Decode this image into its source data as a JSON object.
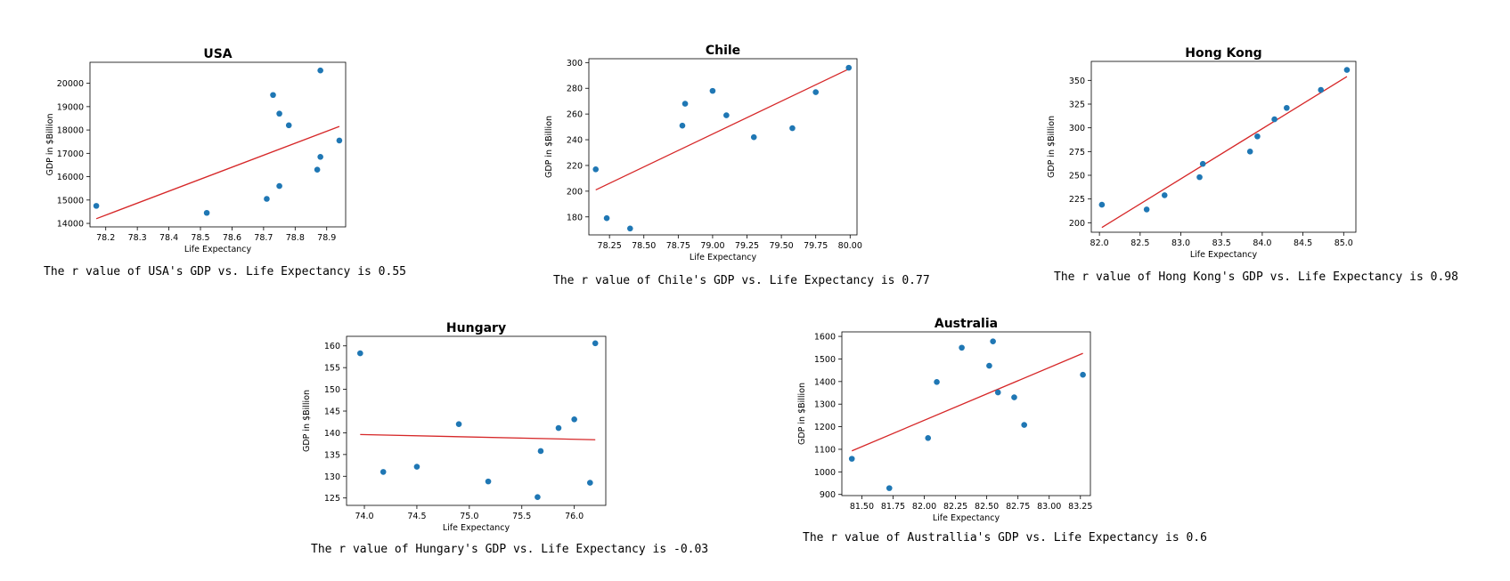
{
  "chart_data": [
    {
      "type": "scatter",
      "title": "USA",
      "xlabel": "Life Expectancy",
      "ylabel": "GDP in $Billion",
      "xlim": [
        78.15,
        78.96
      ],
      "ylim": [
        13850,
        20900
      ],
      "xticks": [
        "78.2",
        "78.3",
        "78.4",
        "78.5",
        "78.6",
        "78.7",
        "78.8",
        "78.9"
      ],
      "xtick_values": [
        78.2,
        78.3,
        78.4,
        78.5,
        78.6,
        78.7,
        78.8,
        78.9
      ],
      "yticks": [
        "14000",
        "15000",
        "16000",
        "17000",
        "18000",
        "19000",
        "20000"
      ],
      "ytick_values": [
        14000,
        15000,
        16000,
        17000,
        18000,
        19000,
        20000
      ],
      "x": [
        78.17,
        78.52,
        78.71,
        78.73,
        78.75,
        78.75,
        78.78,
        78.87,
        78.88,
        78.88,
        78.94
      ],
      "y": [
        14750,
        14450,
        15050,
        19500,
        18700,
        15600,
        18200,
        16300,
        16850,
        20550,
        17550
      ],
      "fit": [
        [
          78.17,
          14200
        ],
        [
          78.94,
          18150
        ]
      ],
      "caption": "The r value of USA's GDP vs. Life Expectancy is 0.55"
    },
    {
      "type": "scatter",
      "title": "Chile",
      "xlabel": "Life Expectancy",
      "ylabel": "GDP in $Billion",
      "xlim": [
        78.1,
        80.05
      ],
      "ylim": [
        166,
        303
      ],
      "xticks": [
        "78.25",
        "78.50",
        "78.75",
        "79.00",
        "79.25",
        "79.50",
        "79.75",
        "80.00"
      ],
      "xtick_values": [
        78.25,
        78.5,
        78.75,
        79.0,
        79.25,
        79.5,
        79.75,
        80.0
      ],
      "yticks": [
        "180",
        "200",
        "220",
        "240",
        "260",
        "280",
        "300"
      ],
      "ytick_values": [
        180,
        200,
        220,
        240,
        260,
        280,
        300
      ],
      "x": [
        78.15,
        78.23,
        78.4,
        78.78,
        78.8,
        79.0,
        79.1,
        79.3,
        79.58,
        79.75,
        79.99
      ],
      "y": [
        217,
        179,
        171,
        251,
        268,
        278,
        259,
        242,
        249,
        277,
        296
      ],
      "fit": [
        [
          78.15,
          201
        ],
        [
          79.99,
          295
        ]
      ],
      "caption": "The r value of Chile's GDP vs. Life Expectancy is 0.77"
    },
    {
      "type": "scatter",
      "title": "Hong Kong",
      "xlabel": "Life Expectancy",
      "ylabel": "GDP in $Billion",
      "xlim": [
        81.9,
        85.15
      ],
      "ylim": [
        190,
        370
      ],
      "xticks": [
        "82.0",
        "82.5",
        "83.0",
        "83.5",
        "84.0",
        "84.5",
        "85.0"
      ],
      "xtick_values": [
        82.0,
        82.5,
        83.0,
        83.5,
        84.0,
        84.5,
        85.0
      ],
      "yticks": [
        "200",
        "225",
        "250",
        "275",
        "300",
        "325",
        "350"
      ],
      "ytick_values": [
        200,
        225,
        250,
        275,
        300,
        325,
        350
      ],
      "x": [
        82.03,
        82.58,
        82.8,
        83.23,
        83.27,
        83.85,
        83.94,
        84.15,
        84.3,
        84.72,
        85.04
      ],
      "y": [
        219,
        214,
        229,
        248,
        262,
        275,
        291,
        309,
        321,
        340,
        361
      ],
      "fit": [
        [
          82.03,
          195
        ],
        [
          85.04,
          354
        ]
      ],
      "caption": "The r value of Hong Kong's GDP vs. Life Expectancy is 0.98"
    },
    {
      "type": "scatter",
      "title": "Hungary",
      "xlabel": "Life Expectancy",
      "ylabel": "GDP in $Billion",
      "xlim": [
        73.83,
        76.3
      ],
      "ylim": [
        123.3,
        162.2
      ],
      "xticks": [
        "74.0",
        "74.5",
        "75.0",
        "75.5",
        "76.0"
      ],
      "xtick_values": [
        74.0,
        74.5,
        75.0,
        75.5,
        76.0
      ],
      "yticks": [
        "125",
        "130",
        "135",
        "140",
        "145",
        "150",
        "155",
        "160"
      ],
      "ytick_values": [
        125,
        130,
        135,
        140,
        145,
        150,
        155,
        160
      ],
      "x": [
        73.96,
        74.18,
        74.5,
        74.9,
        75.18,
        75.65,
        75.68,
        75.85,
        76.0,
        76.15,
        76.2
      ],
      "y": [
        158.3,
        131.0,
        132.2,
        142.0,
        128.8,
        125.2,
        135.8,
        141.1,
        143.1,
        128.5,
        160.6
      ],
      "fit": [
        [
          73.96,
          139.6
        ],
        [
          76.2,
          138.4
        ]
      ],
      "caption": "The r value of Hungary's GDP vs. Life Expectancy is -0.03"
    },
    {
      "type": "scatter",
      "title": "Australia",
      "xlabel": "Life Expectancy",
      "ylabel": "GDP in $Billion",
      "xlim": [
        81.34,
        83.33
      ],
      "ylim": [
        895,
        1620
      ],
      "xticks": [
        "81.50",
        "81.75",
        "82.00",
        "82.25",
        "82.50",
        "82.75",
        "83.00",
        "83.25"
      ],
      "xtick_values": [
        81.5,
        81.75,
        82.0,
        82.25,
        82.5,
        82.75,
        83.0,
        83.25
      ],
      "yticks": [
        "900",
        "1000",
        "1100",
        "1200",
        "1300",
        "1400",
        "1500",
        "1600"
      ],
      "ytick_values": [
        900,
        1000,
        1100,
        1200,
        1300,
        1400,
        1500,
        1600
      ],
      "x": [
        81.42,
        81.72,
        82.03,
        82.1,
        82.3,
        82.52,
        82.55,
        82.59,
        82.72,
        82.8,
        83.27
      ],
      "y": [
        1058,
        928,
        1150,
        1398,
        1550,
        1470,
        1578,
        1352,
        1330,
        1208,
        1430
      ],
      "fit": [
        [
          81.42,
          1093
        ],
        [
          83.27,
          1525
        ]
      ],
      "caption": "The r value of Australlia's GDP vs. Life Expectancy is 0.6"
    }
  ],
  "colors": {
    "points": "#1f77b4",
    "fit_line": "#d62728",
    "axes": "#000000"
  }
}
